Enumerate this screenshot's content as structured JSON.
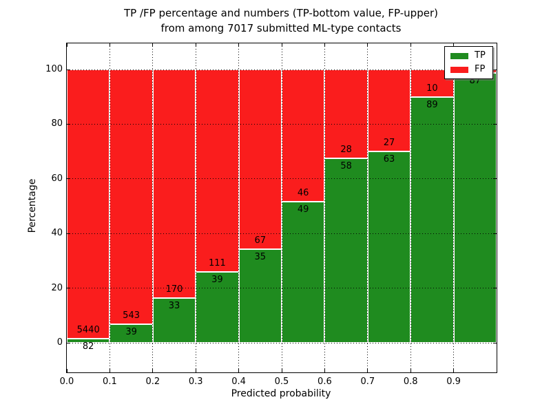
{
  "title": {
    "line1": "TP /FP percentage and numbers (TP-bottom value, FP-upper)",
    "line2": "from among 7017 submitted ML-type contacts"
  },
  "axes": {
    "x_label": "Predicted probability",
    "y_label": "Percentage",
    "x_tick_labels": [
      "0.0",
      "0.1",
      "0.2",
      "0.3",
      "0.4",
      "0.5",
      "0.6",
      "0.7",
      "0.8",
      "0.9"
    ],
    "y_tick_labels": [
      "0",
      "20",
      "40",
      "60",
      "80",
      "100"
    ],
    "y_tick_values": [
      0,
      20,
      40,
      60,
      80,
      100
    ]
  },
  "legend": {
    "items": [
      {
        "label": "TP",
        "color": "#1f8b1f"
      },
      {
        "label": "FP",
        "color": "#fa1d1d"
      }
    ]
  },
  "chart_data": {
    "type": "bar",
    "stacked": true,
    "title": "TP /FP percentage and numbers (TP-bottom value, FP-upper) from among 7017 submitted ML-type contacts",
    "xlabel": "Predicted probability",
    "ylabel": "Percentage",
    "total_submitted_contacts": 7017,
    "x_bins": [
      [
        0.0,
        0.1
      ],
      [
        0.1,
        0.2
      ],
      [
        0.2,
        0.3
      ],
      [
        0.3,
        0.4
      ],
      [
        0.4,
        0.5
      ],
      [
        0.5,
        0.6
      ],
      [
        0.6,
        0.7
      ],
      [
        0.7,
        0.8
      ],
      [
        0.8,
        0.9
      ],
      [
        0.9,
        1.0
      ]
    ],
    "series": [
      {
        "name": "TP",
        "color": "#1f8b1f",
        "counts": [
          82,
          39,
          33,
          39,
          35,
          49,
          58,
          63,
          89,
          87
        ]
      },
      {
        "name": "FP",
        "color": "#fa1d1d",
        "counts": [
          5440,
          543,
          170,
          111,
          67,
          46,
          28,
          27,
          10,
          null
        ]
      }
    ],
    "tp_percent": [
      1.49,
      6.7,
      16.26,
      26.0,
      34.31,
      51.58,
      67.44,
      70.0,
      89.9,
      98.86
    ],
    "xlim": [
      0.0,
      1.0
    ],
    "ylim_visible": [
      -11,
      110
    ],
    "grid": "dotted, both axes",
    "legend_position": "upper right",
    "bar_edge_color": "#ffffff"
  }
}
